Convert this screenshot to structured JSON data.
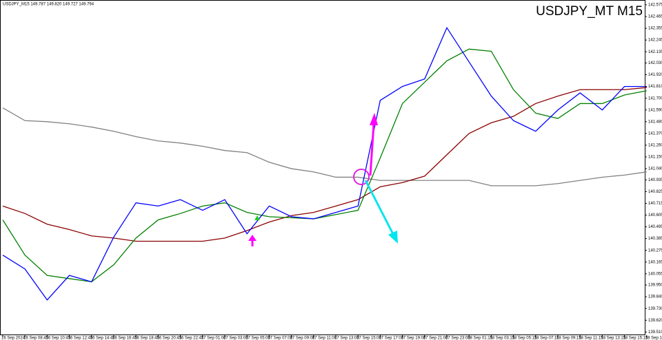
{
  "chart_data": {
    "type": "line",
    "title": "USDJPY_MT M15",
    "subtitle": "USDJPY_M15 149.787 149.820 149.727 149.794",
    "categories": [
      "16 Sep 2024",
      "16 Sep 08:45",
      "16 Sep 10:45",
      "16 Sep 12:45",
      "16 Sep 14:45",
      "16 Sep 16:45",
      "16 Sep 18:45",
      "16 Sep 20:45",
      "16 Sep 22:45",
      "17 Sep 01:00",
      "17 Sep 03:00",
      "17 Sep 05:00",
      "17 Sep 07:00",
      "17 Sep 09:00",
      "17 Sep 11:00",
      "17 Sep 13:00",
      "17 Sep 15:00",
      "17 Sep 17:00",
      "17 Sep 19:00",
      "17 Sep 21:00",
      "17 Sep 23:00",
      "18 Sep 01:15",
      "18 Sep 03:15",
      "18 Sep 05:15",
      "18 Sep 07:15",
      "18 Sep 09:15",
      "18 Sep 11:15",
      "18 Sep 13:15",
      "18 Sep 15:15",
      "18 Sep 17:15"
    ],
    "series": [
      {
        "color": "#808080",
        "values": [
          141.61,
          141.49,
          141.48,
          141.46,
          141.43,
          141.39,
          141.34,
          141.3,
          141.28,
          141.25,
          141.21,
          141.19,
          141.1,
          141.04,
          141.01,
          140.96,
          140.96,
          140.93,
          140.93,
          140.93,
          140.93,
          140.93,
          140.88,
          140.88,
          140.88,
          140.9,
          140.93,
          140.96,
          140.98,
          141.01
        ]
      },
      {
        "color": "#8b0000",
        "values": [
          140.69,
          140.62,
          140.52,
          140.47,
          140.41,
          140.39,
          140.36,
          140.36,
          140.36,
          140.36,
          140.39,
          140.46,
          140.54,
          140.6,
          140.63,
          140.69,
          140.75,
          140.87,
          140.91,
          140.97,
          141.17,
          141.37,
          141.47,
          141.53,
          141.65,
          141.72,
          141.78,
          141.78,
          141.78,
          141.8
        ]
      },
      {
        "color": "#008000",
        "values": [
          140.56,
          140.23,
          140.04,
          140.01,
          139.98,
          140.14,
          140.39,
          140.56,
          140.62,
          140.69,
          140.72,
          140.63,
          140.59,
          140.58,
          140.57,
          140.61,
          140.65,
          141.14,
          141.65,
          141.85,
          142.05,
          142.16,
          142.14,
          141.78,
          141.56,
          141.51,
          141.65,
          141.65,
          141.73,
          141.77
        ]
      },
      {
        "color": "#0000ff",
        "values": [
          140.23,
          140.1,
          139.81,
          140.04,
          139.98,
          140.4,
          140.72,
          140.69,
          140.75,
          140.65,
          140.75,
          140.43,
          140.69,
          140.59,
          140.57,
          140.63,
          140.69,
          141.68,
          141.81,
          141.88,
          142.36,
          142.04,
          141.72,
          141.49,
          141.39,
          141.59,
          141.75,
          141.59,
          141.81,
          141.81
        ]
      }
    ],
    "ylim": [
      139.48,
      142.62
    ],
    "yticks": [
      142.575,
      142.465,
      142.355,
      142.245,
      142.135,
      {
        "value": 142.03,
        "label": "142.030"
      },
      {
        "value": 141.92,
        "label": "141.920"
      },
      {
        "value": 141.81,
        "label": "141.810"
      },
      {
        "value": 141.7,
        "label": "141.700"
      },
      {
        "value": 141.59,
        "label": "141.590"
      },
      {
        "value": 141.48,
        "label": "141.480"
      },
      {
        "value": 141.37,
        "label": "141.370"
      },
      {
        "value": 141.26,
        "label": "141.260"
      },
      {
        "value": 141.15,
        "label": "141.150"
      },
      {
        "value": 141.04,
        "label": "141.040"
      },
      140.935,
      140.825,
      140.715,
      140.605,
      140.495,
      140.385,
      140.275,
      140.165,
      140.055,
      {
        "value": 139.95,
        "label": "139.950"
      },
      {
        "value": 139.84,
        "label": "139.840"
      },
      {
        "value": 139.73,
        "label": "139.730"
      },
      {
        "value": 139.62,
        "label": "139.620"
      },
      {
        "value": 139.51,
        "label": "139.510"
      }
    ]
  }
}
